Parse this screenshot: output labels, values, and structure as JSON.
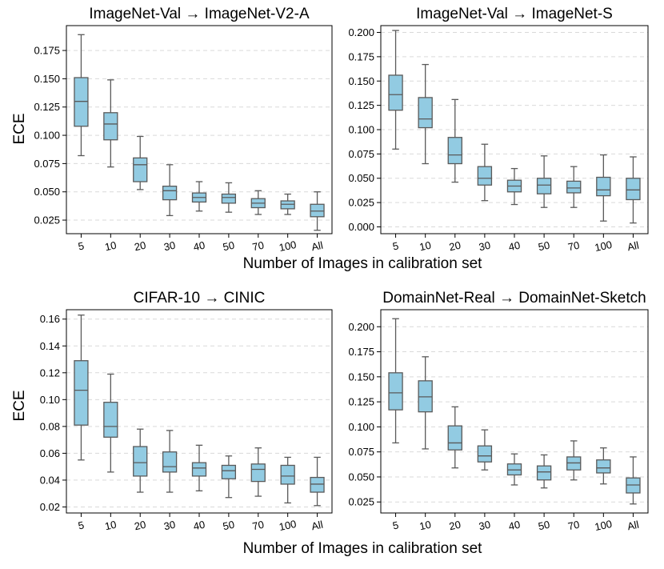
{
  "figure": {
    "ylabel": "ECE",
    "xlabel": "Number of Images in calibration set"
  },
  "style": {
    "box_fill": "#92cbe2",
    "box_edge": "#5a5a5a",
    "grid_color": "#d9d9d9"
  },
  "chart_data": [
    {
      "type": "box",
      "title": "ImageNet-Val → ImageNet-V2-A",
      "categories": [
        "5",
        "10",
        "20",
        "30",
        "40",
        "50",
        "70",
        "100",
        "All"
      ],
      "ylim": [
        0.013,
        0.197
      ],
      "yticks": [
        0.025,
        0.05,
        0.075,
        0.1,
        0.125,
        0.15,
        0.175
      ],
      "ytick_labels": [
        "0.025",
        "0.050",
        "0.075",
        "0.100",
        "0.125",
        "0.150",
        "0.175"
      ],
      "grid": true,
      "boxes": [
        {
          "min": 0.082,
          "q1": 0.108,
          "median": 0.13,
          "q3": 0.151,
          "max": 0.189
        },
        {
          "min": 0.072,
          "q1": 0.096,
          "median": 0.11,
          "q3": 0.12,
          "max": 0.149
        },
        {
          "min": 0.052,
          "q1": 0.059,
          "median": 0.074,
          "q3": 0.08,
          "max": 0.099
        },
        {
          "min": 0.029,
          "q1": 0.043,
          "median": 0.051,
          "q3": 0.055,
          "max": 0.074
        },
        {
          "min": 0.033,
          "q1": 0.041,
          "median": 0.045,
          "q3": 0.049,
          "max": 0.059
        },
        {
          "min": 0.032,
          "q1": 0.04,
          "median": 0.045,
          "q3": 0.048,
          "max": 0.058
        },
        {
          "min": 0.03,
          "q1": 0.036,
          "median": 0.04,
          "q3": 0.044,
          "max": 0.051
        },
        {
          "min": 0.03,
          "q1": 0.035,
          "median": 0.039,
          "q3": 0.042,
          "max": 0.048
        },
        {
          "min": 0.016,
          "q1": 0.028,
          "median": 0.033,
          "q3": 0.039,
          "max": 0.05
        }
      ]
    },
    {
      "type": "box",
      "title": "ImageNet-Val → ImageNet-S",
      "categories": [
        "5",
        "10",
        "20",
        "30",
        "40",
        "50",
        "70",
        "100",
        "All"
      ],
      "ylim": [
        -0.007,
        0.207
      ],
      "yticks": [
        0.0,
        0.025,
        0.05,
        0.075,
        0.1,
        0.125,
        0.15,
        0.175,
        0.2
      ],
      "ytick_labels": [
        "0.000",
        "0.025",
        "0.050",
        "0.075",
        "0.100",
        "0.125",
        "0.150",
        "0.175",
        "0.200"
      ],
      "grid": true,
      "boxes": [
        {
          "min": 0.08,
          "q1": 0.12,
          "median": 0.136,
          "q3": 0.156,
          "max": 0.202
        },
        {
          "min": 0.065,
          "q1": 0.102,
          "median": 0.111,
          "q3": 0.133,
          "max": 0.167
        },
        {
          "min": 0.046,
          "q1": 0.065,
          "median": 0.074,
          "q3": 0.092,
          "max": 0.131
        },
        {
          "min": 0.027,
          "q1": 0.043,
          "median": 0.05,
          "q3": 0.062,
          "max": 0.085
        },
        {
          "min": 0.023,
          "q1": 0.036,
          "median": 0.042,
          "q3": 0.048,
          "max": 0.06
        },
        {
          "min": 0.02,
          "q1": 0.034,
          "median": 0.043,
          "q3": 0.05,
          "max": 0.073
        },
        {
          "min": 0.02,
          "q1": 0.035,
          "median": 0.04,
          "q3": 0.047,
          "max": 0.062
        },
        {
          "min": 0.006,
          "q1": 0.032,
          "median": 0.038,
          "q3": 0.051,
          "max": 0.074
        },
        {
          "min": 0.004,
          "q1": 0.028,
          "median": 0.038,
          "q3": 0.05,
          "max": 0.072
        }
      ]
    },
    {
      "type": "box",
      "title": "CIFAR-10 → CINIC",
      "categories": [
        "5",
        "10",
        "20",
        "30",
        "40",
        "50",
        "70",
        "100",
        "All"
      ],
      "ylim": [
        0.0155,
        0.167
      ],
      "yticks": [
        0.02,
        0.04,
        0.06,
        0.08,
        0.1,
        0.12,
        0.14,
        0.16
      ],
      "ytick_labels": [
        "0.02",
        "0.04",
        "0.06",
        "0.08",
        "0.10",
        "0.12",
        "0.14",
        "0.16"
      ],
      "grid": true,
      "boxes": [
        {
          "min": 0.055,
          "q1": 0.081,
          "median": 0.107,
          "q3": 0.129,
          "max": 0.163
        },
        {
          "min": 0.046,
          "q1": 0.072,
          "median": 0.08,
          "q3": 0.098,
          "max": 0.119
        },
        {
          "min": 0.031,
          "q1": 0.043,
          "median": 0.053,
          "q3": 0.065,
          "max": 0.078
        },
        {
          "min": 0.031,
          "q1": 0.046,
          "median": 0.05,
          "q3": 0.061,
          "max": 0.077
        },
        {
          "min": 0.032,
          "q1": 0.043,
          "median": 0.049,
          "q3": 0.053,
          "max": 0.066
        },
        {
          "min": 0.027,
          "q1": 0.041,
          "median": 0.047,
          "q3": 0.051,
          "max": 0.058
        },
        {
          "min": 0.028,
          "q1": 0.039,
          "median": 0.048,
          "q3": 0.052,
          "max": 0.064
        },
        {
          "min": 0.023,
          "q1": 0.037,
          "median": 0.043,
          "q3": 0.051,
          "max": 0.057
        },
        {
          "min": 0.021,
          "q1": 0.031,
          "median": 0.037,
          "q3": 0.042,
          "max": 0.057
        }
      ]
    },
    {
      "type": "box",
      "title": "DomainNet-Real → DomainNet-Sketch",
      "categories": [
        "5",
        "10",
        "20",
        "30",
        "40",
        "50",
        "70",
        "100",
        "All"
      ],
      "ylim": [
        0.014,
        0.217
      ],
      "yticks": [
        0.025,
        0.05,
        0.075,
        0.1,
        0.125,
        0.15,
        0.175,
        0.2
      ],
      "ytick_labels": [
        "0.025",
        "0.050",
        "0.075",
        "0.100",
        "0.125",
        "0.150",
        "0.175",
        "0.200"
      ],
      "grid": true,
      "boxes": [
        {
          "min": 0.084,
          "q1": 0.117,
          "median": 0.134,
          "q3": 0.154,
          "max": 0.208
        },
        {
          "min": 0.078,
          "q1": 0.115,
          "median": 0.13,
          "q3": 0.146,
          "max": 0.17
        },
        {
          "min": 0.059,
          "q1": 0.077,
          "median": 0.084,
          "q3": 0.101,
          "max": 0.12
        },
        {
          "min": 0.057,
          "q1": 0.065,
          "median": 0.071,
          "q3": 0.081,
          "max": 0.097
        },
        {
          "min": 0.042,
          "q1": 0.052,
          "median": 0.057,
          "q3": 0.063,
          "max": 0.073
        },
        {
          "min": 0.039,
          "q1": 0.047,
          "median": 0.055,
          "q3": 0.061,
          "max": 0.072
        },
        {
          "min": 0.047,
          "q1": 0.057,
          "median": 0.064,
          "q3": 0.07,
          "max": 0.086
        },
        {
          "min": 0.043,
          "q1": 0.054,
          "median": 0.059,
          "q3": 0.067,
          "max": 0.079
        },
        {
          "min": 0.023,
          "q1": 0.034,
          "median": 0.042,
          "q3": 0.049,
          "max": 0.07
        }
      ]
    }
  ]
}
